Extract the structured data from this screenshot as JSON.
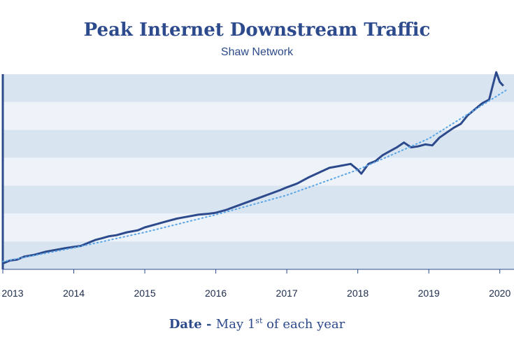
{
  "chart_data": {
    "type": "line",
    "title": "Peak Internet Downstream Traffic",
    "subtitle": "Shaw Network",
    "xlabel_bold": "Date",
    "xlabel_sep": " - ",
    "xlabel_pre": "May 1",
    "xlabel_sup": "st",
    "xlabel_post": " of each year",
    "ylabel": "",
    "x_ticks": [
      "2013",
      "2014",
      "2015",
      "2016",
      "2017",
      "2018",
      "2019",
      "2020"
    ],
    "xlim": [
      2013,
      2020.2
    ],
    "ylim": [
      0,
      100
    ],
    "y_ticks_labeled": false,
    "grid": "horizontal bands",
    "series": [
      {
        "style": "solid",
        "color": "#2c4a8c",
        "x": [
          2013.0,
          2013.1,
          2013.2,
          2013.3,
          2013.45,
          2013.6,
          2013.75,
          2013.9,
          2014.0,
          2014.1,
          2014.2,
          2014.3,
          2014.4,
          2014.5,
          2014.6,
          2014.75,
          2014.9,
          2015.0,
          2015.15,
          2015.3,
          2015.45,
          2015.6,
          2015.75,
          2015.9,
          2016.0,
          2016.15,
          2016.3,
          2016.45,
          2016.6,
          2016.75,
          2016.9,
          2017.0,
          2017.15,
          2017.3,
          2017.45,
          2017.6,
          2017.75,
          2017.9,
          2018.0,
          2018.05,
          2018.15,
          2018.25,
          2018.35,
          2018.45,
          2018.55,
          2018.65,
          2018.75,
          2018.85,
          2018.95,
          2019.05,
          2019.15,
          2019.25,
          2019.35,
          2019.45,
          2019.55,
          2019.65,
          2019.75,
          2019.85,
          2019.9,
          2019.95,
          2020.0,
          2020.05
        ],
        "y": [
          3,
          4.5,
          5,
          6.5,
          7.5,
          9,
          10,
          11,
          11.5,
          12,
          13.5,
          15,
          16,
          17,
          17.5,
          19,
          20,
          21.5,
          23,
          24.5,
          26,
          27,
          28,
          28.5,
          29,
          30.5,
          32.5,
          34.5,
          36.5,
          38.5,
          40.5,
          42,
          44,
          47,
          49.5,
          52,
          53,
          54,
          51,
          49,
          54,
          55.5,
          58.5,
          60.5,
          62.5,
          65,
          62.5,
          63,
          64,
          63.5,
          67.5,
          70,
          72.5,
          74.5,
          79,
          82,
          85,
          87,
          94,
          101,
          96,
          94
        ]
      },
      {
        "style": "dotted trend",
        "color": "#5aa6e6",
        "x": [
          2013.0,
          2014.0,
          2015.0,
          2016.0,
          2017.0,
          2018.0,
          2019.0,
          2020.1
        ],
        "y": [
          4,
          11,
          19,
          28,
          38,
          51,
          67,
          92
        ]
      }
    ]
  }
}
